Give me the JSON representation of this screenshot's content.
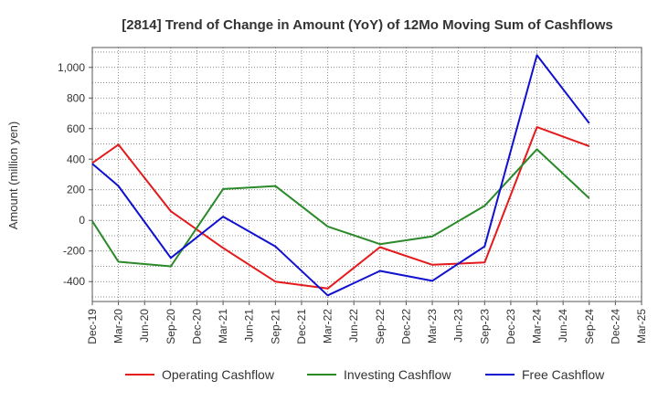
{
  "chart_data": {
    "type": "line",
    "title": "[2814]  Trend of Change in Amount (YoY) of 12Mo Moving Sum of Cashflows",
    "xlabel": "",
    "ylabel": "Amount (million yen)",
    "ylim": [
      -530,
      1130
    ],
    "yticks": [
      -400,
      -200,
      0,
      200,
      400,
      600,
      800,
      1000
    ],
    "ytick_labels": [
      "-400",
      "-200",
      "0",
      "200",
      "400",
      "600",
      "800",
      "1,000"
    ],
    "categories": [
      "Dec-19",
      "Mar-20",
      "Jun-20",
      "Sep-20",
      "Dec-20",
      "Mar-21",
      "Jun-21",
      "Sep-21",
      "Dec-21",
      "Mar-22",
      "Jun-22",
      "Sep-22",
      "Dec-22",
      "Mar-23",
      "Jun-23",
      "Sep-23",
      "Dec-23",
      "Mar-24",
      "Jun-24",
      "Sep-24",
      "Dec-24",
      "Mar-25"
    ],
    "grid": true,
    "legend_position": "bottom",
    "series": [
      {
        "name": "Operating Cashflow",
        "color": "#e41a1c",
        "values": [
          375,
          495,
          null,
          60,
          null,
          -180,
          null,
          -400,
          null,
          -445,
          null,
          -175,
          null,
          -290,
          null,
          -275,
          null,
          610,
          null,
          485,
          null,
          null
        ]
      },
      {
        "name": "Investing Cashflow",
        "color": "#2a8a2a",
        "values": [
          -5,
          -270,
          null,
          -300,
          null,
          205,
          null,
          225,
          null,
          -40,
          null,
          -155,
          null,
          -105,
          null,
          95,
          null,
          465,
          null,
          145,
          null,
          null
        ]
      },
      {
        "name": "Free Cashflow",
        "color": "#1010d0",
        "values": [
          370,
          225,
          null,
          -245,
          null,
          25,
          null,
          -170,
          null,
          -490,
          null,
          -330,
          null,
          -395,
          null,
          -170,
          null,
          1080,
          null,
          635,
          null,
          null
        ]
      }
    ]
  }
}
